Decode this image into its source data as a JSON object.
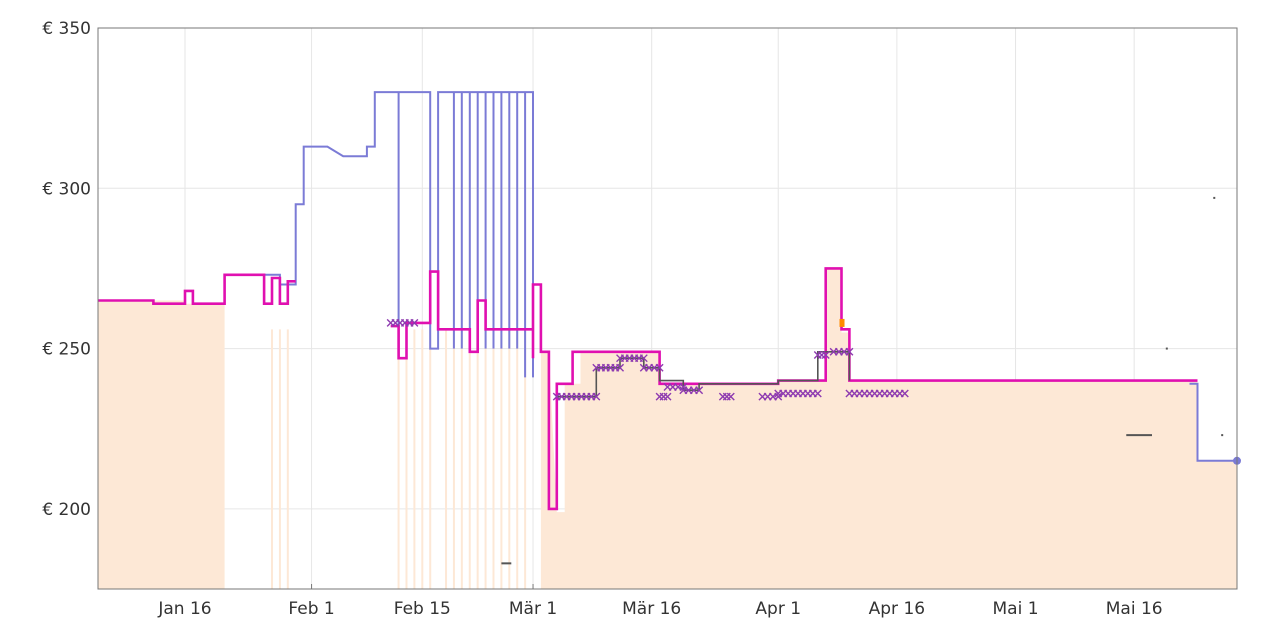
{
  "chart_data": {
    "type": "line",
    "title": "",
    "xlabel": "",
    "ylabel": "",
    "ylim": [
      175,
      350
    ],
    "xlim": [
      "2019-01-05",
      "2019-05-29"
    ],
    "grid": true,
    "y_ticks": [
      {
        "value": 200,
        "label": "€ 200"
      },
      {
        "value": 250,
        "label": "€ 250"
      },
      {
        "value": 300,
        "label": "€ 300"
      },
      {
        "value": 350,
        "label": "€ 350"
      }
    ],
    "x_ticks": [
      {
        "date": "2019-01-16",
        "label": "Jan 16"
      },
      {
        "date": "2019-02-01",
        "label": "Feb 1"
      },
      {
        "date": "2019-02-15",
        "label": "Feb 15"
      },
      {
        "date": "2019-03-01",
        "label": "Mär 1"
      },
      {
        "date": "2019-03-16",
        "label": "Mär 16"
      },
      {
        "date": "2019-04-01",
        "label": "Apr 1"
      },
      {
        "date": "2019-04-16",
        "label": "Apr 16"
      },
      {
        "date": "2019-05-01",
        "label": "Mai 1"
      },
      {
        "date": "2019-05-16",
        "label": "Mai 16"
      }
    ],
    "colors": {
      "amazon": "#ff8a00",
      "amazon_fill": "#fde8d6",
      "new": "#7b7bd6",
      "third_party": "#e010b0",
      "used": "#555555",
      "deal_marker": "#8e3ab0",
      "grid": "#e6e6e6",
      "axis": "#777777"
    },
    "amazon_fill_segments": [
      [
        [
          "2019-01-05",
          265
        ],
        [
          "2019-01-16",
          265
        ],
        [
          "2019-01-16",
          264
        ],
        [
          "2019-01-21",
          264
        ]
      ],
      [
        [
          "2019-03-02",
          249
        ],
        [
          "2019-03-03",
          249
        ],
        [
          "2019-03-04",
          199
        ],
        [
          "2019-03-05",
          199
        ],
        [
          "2019-03-05",
          239
        ],
        [
          "2019-03-07",
          239
        ],
        [
          "2019-03-07",
          249
        ],
        [
          "2019-03-17",
          249
        ],
        [
          "2019-03-17",
          239
        ],
        [
          "2019-04-01",
          239
        ],
        [
          "2019-04-01",
          240
        ],
        [
          "2019-04-07",
          240
        ],
        [
          "2019-04-07",
          275
        ],
        [
          "2019-04-09",
          275
        ],
        [
          "2019-04-09",
          255
        ],
        [
          "2019-04-10",
          255
        ],
        [
          "2019-04-10",
          240
        ],
        [
          "2019-05-24",
          240
        ],
        [
          "2019-05-24",
          215
        ],
        [
          "2019-05-29",
          215
        ]
      ]
    ],
    "fill_spikes": [
      "2019-01-27",
      "2019-01-28",
      "2019-01-29",
      "2019-02-12",
      "2019-02-13",
      "2019-02-14",
      "2019-02-15",
      "2019-02-16",
      "2019-02-18",
      "2019-02-19",
      "2019-02-20",
      "2019-02-21",
      "2019-02-22",
      "2019-02-23",
      "2019-02-24",
      "2019-02-25",
      "2019-02-26",
      "2019-02-27",
      "2019-02-28"
    ],
    "series": [
      {
        "key": "new",
        "points": [
          [
            "2019-01-21",
            273
          ],
          [
            "2019-01-28",
            273
          ],
          [
            "2019-01-28",
            270
          ],
          [
            "2019-01-30",
            270
          ],
          [
            "2019-01-30",
            295
          ],
          [
            "2019-01-31",
            295
          ],
          [
            "2019-01-31",
            313
          ],
          [
            "2019-02-03",
            313
          ],
          [
            "2019-02-05",
            310
          ],
          [
            "2019-02-08",
            310
          ],
          [
            "2019-02-08",
            313
          ],
          [
            "2019-02-09",
            313
          ],
          [
            "2019-02-09",
            330
          ],
          [
            "2019-02-12",
            330
          ],
          [
            "2019-02-12",
            247
          ],
          [
            "2019-02-12",
            330
          ],
          [
            "2019-02-16",
            330
          ],
          [
            "2019-02-16",
            250
          ],
          [
            "2019-02-17",
            250
          ],
          [
            "2019-02-17",
            330
          ],
          [
            "2019-02-19",
            330
          ],
          [
            "2019-02-19",
            250
          ],
          [
            "2019-02-19",
            330
          ],
          [
            "2019-02-20",
            330
          ],
          [
            "2019-02-20",
            250
          ],
          [
            "2019-02-20",
            330
          ],
          [
            "2019-02-21",
            330
          ],
          [
            "2019-02-21",
            250
          ],
          [
            "2019-02-21",
            330
          ],
          [
            "2019-02-22",
            330
          ],
          [
            "2019-02-22",
            250
          ],
          [
            "2019-02-22",
            330
          ],
          [
            "2019-02-23",
            330
          ],
          [
            "2019-02-23",
            250
          ],
          [
            "2019-02-23",
            330
          ],
          [
            "2019-02-24",
            330
          ],
          [
            "2019-02-24",
            250
          ],
          [
            "2019-02-24",
            330
          ],
          [
            "2019-02-25",
            330
          ],
          [
            "2019-02-25",
            250
          ],
          [
            "2019-02-25",
            330
          ],
          [
            "2019-02-26",
            330
          ],
          [
            "2019-02-26",
            250
          ],
          [
            "2019-02-26",
            330
          ],
          [
            "2019-02-27",
            330
          ],
          [
            "2019-02-27",
            250
          ],
          [
            "2019-02-27",
            330
          ],
          [
            "2019-02-28",
            330
          ],
          [
            "2019-02-28",
            241
          ],
          [
            "2019-02-28",
            330
          ],
          [
            "2019-03-01",
            330
          ],
          [
            "2019-03-01",
            241
          ]
        ]
      },
      {
        "key": "new",
        "points": [
          [
            "2019-05-23",
            239
          ],
          [
            "2019-05-24",
            239
          ],
          [
            "2019-05-24",
            215
          ],
          [
            "2019-05-29",
            215
          ]
        ]
      },
      {
        "key": "third_party",
        "points": [
          [
            "2019-01-05",
            265
          ],
          [
            "2019-01-12",
            265
          ],
          [
            "2019-01-12",
            264
          ],
          [
            "2019-01-16",
            264
          ],
          [
            "2019-01-16",
            268
          ],
          [
            "2019-01-17",
            268
          ],
          [
            "2019-01-17",
            264
          ],
          [
            "2019-01-21",
            264
          ],
          [
            "2019-01-21",
            273
          ],
          [
            "2019-01-26",
            273
          ],
          [
            "2019-01-26",
            264
          ],
          [
            "2019-01-27",
            264
          ],
          [
            "2019-01-27",
            272
          ],
          [
            "2019-01-28",
            272
          ],
          [
            "2019-01-28",
            264
          ],
          [
            "2019-01-29",
            264
          ],
          [
            "2019-01-29",
            271
          ],
          [
            "2019-01-30",
            271
          ]
        ]
      },
      {
        "key": "third_party",
        "points": [
          [
            "2019-02-11",
            257
          ],
          [
            "2019-02-12",
            257
          ],
          [
            "2019-02-12",
            247
          ],
          [
            "2019-02-13",
            247
          ],
          [
            "2019-02-13",
            258
          ],
          [
            "2019-02-16",
            258
          ],
          [
            "2019-02-16",
            274
          ],
          [
            "2019-02-17",
            274
          ],
          [
            "2019-02-17",
            256
          ],
          [
            "2019-02-21",
            256
          ],
          [
            "2019-02-21",
            249
          ],
          [
            "2019-02-22",
            249
          ],
          [
            "2019-02-22",
            265
          ],
          [
            "2019-02-23",
            265
          ],
          [
            "2019-02-23",
            256
          ],
          [
            "2019-03-01",
            256
          ],
          [
            "2019-03-01",
            247
          ],
          [
            "2019-03-01",
            270
          ],
          [
            "2019-03-02",
            270
          ],
          [
            "2019-03-02",
            249
          ],
          [
            "2019-03-03",
            249
          ],
          [
            "2019-03-03",
            200
          ],
          [
            "2019-03-04",
            200
          ],
          [
            "2019-03-04",
            239
          ],
          [
            "2019-03-06",
            239
          ],
          [
            "2019-03-06",
            249
          ],
          [
            "2019-03-17",
            249
          ],
          [
            "2019-03-17",
            239
          ],
          [
            "2019-04-01",
            239
          ],
          [
            "2019-04-01",
            240
          ],
          [
            "2019-04-07",
            240
          ],
          [
            "2019-04-07",
            275
          ],
          [
            "2019-04-09",
            275
          ],
          [
            "2019-04-09",
            256
          ],
          [
            "2019-04-10",
            256
          ],
          [
            "2019-04-10",
            240
          ],
          [
            "2019-05-24",
            240
          ]
        ]
      },
      {
        "key": "used",
        "points": [
          [
            "2019-03-04",
            235
          ],
          [
            "2019-03-09",
            235
          ],
          [
            "2019-03-09",
            244
          ],
          [
            "2019-03-12",
            244
          ],
          [
            "2019-03-12",
            247
          ],
          [
            "2019-03-15",
            247
          ],
          [
            "2019-03-15",
            244
          ],
          [
            "2019-03-17",
            244
          ],
          [
            "2019-03-17",
            240
          ],
          [
            "2019-03-20",
            240
          ],
          [
            "2019-03-20",
            237
          ],
          [
            "2019-03-22",
            237
          ],
          [
            "2019-03-22",
            239
          ],
          [
            "2019-04-01",
            239
          ],
          [
            "2019-04-01",
            240
          ],
          [
            "2019-04-06",
            240
          ],
          [
            "2019-04-06",
            249
          ],
          [
            "2019-04-10",
            249
          ],
          [
            "2019-04-10",
            240
          ]
        ]
      }
    ],
    "deal_markers": [
      [
        [
          "2019-02-11",
          258
        ],
        [
          "2019-02-14",
          258
        ]
      ],
      [
        [
          "2019-03-04",
          235
        ],
        [
          "2019-03-09",
          235
        ]
      ],
      [
        [
          "2019-03-09",
          244
        ],
        [
          "2019-03-12",
          244
        ]
      ],
      [
        [
          "2019-03-12",
          247
        ],
        [
          "2019-03-15",
          247
        ]
      ],
      [
        [
          "2019-03-15",
          244
        ],
        [
          "2019-03-17",
          244
        ]
      ],
      [
        [
          "2019-03-17",
          235
        ],
        [
          "2019-03-18",
          235
        ]
      ],
      [
        [
          "2019-03-18",
          238
        ],
        [
          "2019-03-20",
          238
        ]
      ],
      [
        [
          "2019-03-20",
          237
        ],
        [
          "2019-03-22",
          237
        ]
      ],
      [
        [
          "2019-03-25",
          235
        ],
        [
          "2019-03-26",
          235
        ]
      ],
      [
        [
          "2019-03-30",
          235
        ],
        [
          "2019-04-01",
          235
        ]
      ],
      [
        [
          "2019-04-01",
          236
        ],
        [
          "2019-04-06",
          236
        ]
      ],
      [
        [
          "2019-04-06",
          248
        ],
        [
          "2019-04-07",
          248
        ]
      ],
      [
        [
          "2019-04-08",
          249
        ],
        [
          "2019-04-10",
          249
        ]
      ],
      [
        [
          "2019-04-10",
          236
        ],
        [
          "2019-04-17",
          236
        ]
      ]
    ],
    "stray_marks": [
      {
        "key": "used",
        "from": "2019-02-25",
        "to": "2019-02-26",
        "y": 183
      },
      {
        "key": "used",
        "from": "2019-05-15",
        "to": "2019-05-18",
        "y": 223
      },
      {
        "key": "used",
        "from": "2019-05-26",
        "to": "2019-05-26",
        "y": 297
      },
      {
        "key": "used",
        "from": "2019-05-20",
        "to": "2019-05-20",
        "y": 250
      },
      {
        "key": "used",
        "from": "2019-05-27",
        "to": "2019-05-27",
        "y": 223
      }
    ],
    "amazon_blip": {
      "date": "2019-04-09",
      "y": 258
    },
    "end_point": {
      "date": "2019-05-29",
      "y": 215
    }
  }
}
